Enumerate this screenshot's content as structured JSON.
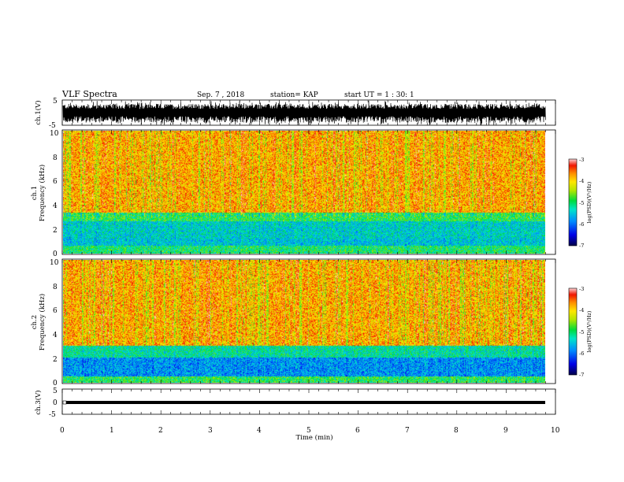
{
  "header": {
    "title": "VLF Spectra",
    "date": "Sep. 7 , 2018",
    "station": "station= KAP",
    "start_ut": "start  UT  =   1 : 30: 1"
  },
  "chart_data": [
    {
      "type": "line",
      "title": "",
      "xlabel": "",
      "ylabel": "ch.1(V)",
      "ylim": [
        -5,
        5
      ],
      "yticks": [
        "5",
        "-5"
      ],
      "xlim": [
        0,
        10
      ],
      "series_color": "#000000",
      "description_values": {
        "approx_mean": 0.0,
        "approx_min": -4.5,
        "approx_max": 3.5
      }
    },
    {
      "type": "heatmap",
      "ylabel": "ch.1",
      "ylabel2": "Frequency  (kHz)",
      "ylim": [
        0,
        10
      ],
      "yticks": [
        "0",
        "2",
        "4",
        "6",
        "8",
        "10"
      ],
      "xlim": [
        0,
        10
      ],
      "data_end_min": 9.8,
      "colorbar": {
        "label": "log(PSD)(V²/Hz)",
        "range": [
          -7,
          -3
        ],
        "ticks": [
          "-3",
          "-4",
          "-5",
          "-6",
          "-7"
        ]
      },
      "bands_khz": [
        {
          "from": 0.0,
          "to": 0.6,
          "level": -5.0
        },
        {
          "from": 0.6,
          "to": 1.2,
          "level": -5.5
        },
        {
          "from": 1.2,
          "to": 2.6,
          "level": -5.4
        },
        {
          "from": 2.6,
          "to": 3.3,
          "level": -4.9
        },
        {
          "from": 3.3,
          "to": 10.0,
          "level": -3.8
        }
      ]
    },
    {
      "type": "heatmap",
      "ylabel": "ch.2",
      "ylabel2": "Frequency  (kHz)",
      "ylim": [
        0,
        10
      ],
      "yticks": [
        "0",
        "2",
        "4",
        "6",
        "8",
        "10"
      ],
      "xlim": [
        0,
        10
      ],
      "data_end_min": 9.8,
      "colorbar": {
        "label": "log(PSD)(V²/Hz)",
        "range": [
          -7,
          -3
        ],
        "ticks": [
          "-3",
          "-4",
          "-5",
          "-6",
          "-7"
        ]
      },
      "bands_khz": [
        {
          "from": 0.0,
          "to": 0.5,
          "level": -4.9
        },
        {
          "from": 0.5,
          "to": 2.0,
          "level": -5.8
        },
        {
          "from": 2.0,
          "to": 3.0,
          "level": -5.2
        },
        {
          "from": 3.0,
          "to": 10.0,
          "level": -3.8
        }
      ]
    },
    {
      "type": "line",
      "ylabel": "ch.3(V)",
      "ylim": [
        -5,
        5
      ],
      "yticks": [
        "5",
        "0",
        "-5"
      ],
      "xlim": [
        0,
        10
      ],
      "xticks": [
        "0",
        "1",
        "2",
        "3",
        "4",
        "5",
        "6",
        "7",
        "8",
        "9",
        "10"
      ],
      "xlabel": "Time  (min)",
      "series_color": "#000000",
      "constant_value": 0.0,
      "data_end_min": 9.8
    }
  ]
}
